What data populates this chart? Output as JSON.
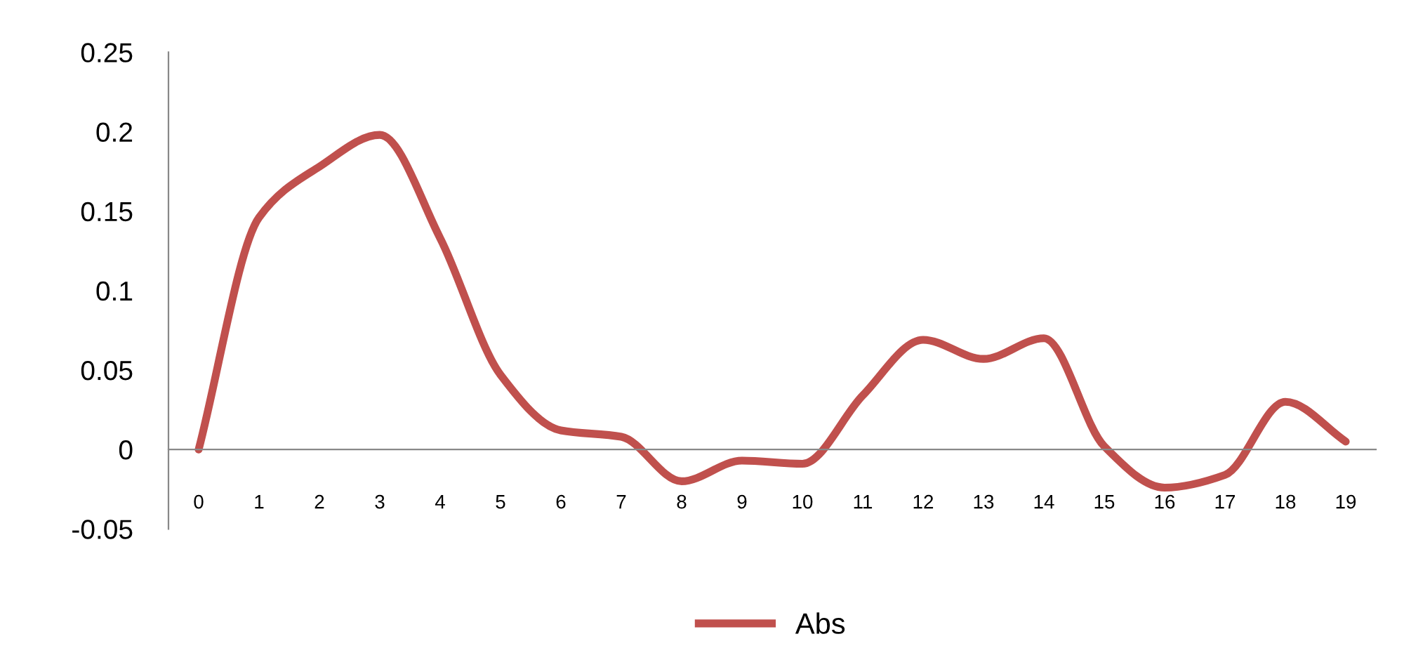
{
  "chart_data": {
    "type": "line",
    "categories": [
      "0",
      "1",
      "2",
      "3",
      "4",
      "5",
      "6",
      "7",
      "8",
      "9",
      "10",
      "11",
      "12",
      "13",
      "14",
      "15",
      "16",
      "17",
      "18",
      "19"
    ],
    "series": [
      {
        "name": "Abs",
        "color": "#c0504d",
        "values": [
          0,
          0.146,
          0.178,
          0.198,
          0.133,
          0.047,
          0.012,
          0.008,
          -0.02,
          -0.007,
          -0.009,
          0.034,
          0.069,
          0.057,
          0.07,
          0.002,
          -0.024,
          -0.016,
          0.03,
          0.005
        ]
      }
    ],
    "ylim": [
      -0.05,
      0.25
    ],
    "yticks": [
      -0.05,
      0,
      0.05,
      0.1,
      0.15,
      0.2,
      0.25
    ],
    "grid": false,
    "legend": "bottom",
    "marker": "none",
    "line_style": "solid"
  }
}
